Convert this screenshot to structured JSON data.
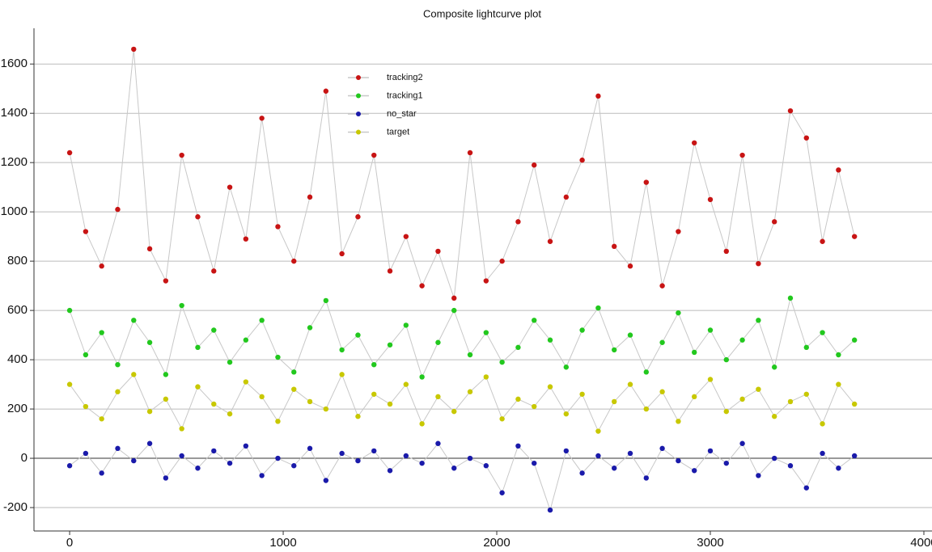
{
  "chart_data": {
    "type": "scatter",
    "title": "Composite lightcurve plot",
    "x": [
      0,
      75,
      150,
      225,
      300,
      375,
      450,
      525,
      600,
      675,
      750,
      825,
      900,
      975,
      1050,
      1125,
      1200,
      1275,
      1350,
      1425,
      1500,
      1575,
      1650,
      1725,
      1800,
      1875,
      1950,
      2025,
      2100,
      2175,
      2250,
      2325,
      2400,
      2475,
      2550,
      2625,
      2700,
      2775,
      2850,
      2925,
      3000,
      3075,
      3150,
      3225,
      3300,
      3375,
      3450,
      3525,
      3600,
      3675
    ],
    "series": [
      {
        "name": "tracking2",
        "color": "#c81414",
        "values": [
          1240,
          920,
          780,
          1010,
          1660,
          850,
          720,
          1230,
          980,
          760,
          1100,
          890,
          1380,
          940,
          800,
          1060,
          1490,
          830,
          980,
          1230,
          760,
          900,
          700,
          840,
          650,
          1240,
          720,
          800,
          960,
          1190,
          880,
          1060,
          1210,
          1470,
          860,
          780,
          1120,
          700,
          920,
          1280,
          1050,
          840,
          1230,
          790,
          960,
          1410,
          1300,
          880,
          1170,
          900
        ]
      },
      {
        "name": "tracking1",
        "color": "#22c81e",
        "values": [
          600,
          420,
          510,
          380,
          560,
          470,
          340,
          620,
          450,
          520,
          390,
          480,
          560,
          410,
          350,
          530,
          640,
          440,
          500,
          380,
          460,
          540,
          330,
          470,
          600,
          420,
          510,
          390,
          450,
          560,
          480,
          370,
          520,
          610,
          440,
          500,
          350,
          470,
          590,
          430,
          520,
          400,
          480,
          560,
          370,
          650,
          450,
          510,
          420,
          480
        ]
      },
      {
        "name": "no_star",
        "color": "#1a1aaa",
        "values": [
          -30,
          20,
          -60,
          40,
          -10,
          60,
          -80,
          10,
          -40,
          30,
          -20,
          50,
          -70,
          0,
          -30,
          40,
          -90,
          20,
          -10,
          30,
          -50,
          10,
          -20,
          60,
          -40,
          0,
          -30,
          -140,
          50,
          -20,
          -210,
          30,
          -60,
          10,
          -40,
          20,
          -80,
          40,
          -10,
          -50,
          30,
          -20,
          60,
          -70,
          0,
          -30,
          -120,
          20,
          -40,
          10
        ]
      },
      {
        "name": "target",
        "color": "#c8c800",
        "values": [
          300,
          210,
          160,
          270,
          340,
          190,
          240,
          120,
          290,
          220,
          180,
          310,
          250,
          150,
          280,
          230,
          200,
          340,
          170,
          260,
          220,
          300,
          140,
          250,
          190,
          270,
          330,
          160,
          240,
          210,
          290,
          180,
          260,
          110,
          230,
          300,
          200,
          270,
          150,
          250,
          320,
          190,
          240,
          280,
          170,
          230,
          260,
          140,
          300,
          220
        ]
      }
    ],
    "line_color": "#c8c8c8",
    "xlim": [
      -167,
      4038
    ],
    "xticks": [
      0,
      1000,
      2000,
      3000,
      4000
    ],
    "ylim": [
      -295,
      1745
    ],
    "yticks": [
      -200,
      0,
      200,
      400,
      600,
      800,
      1000,
      1200,
      1400,
      1600
    ],
    "grid": true
  }
}
